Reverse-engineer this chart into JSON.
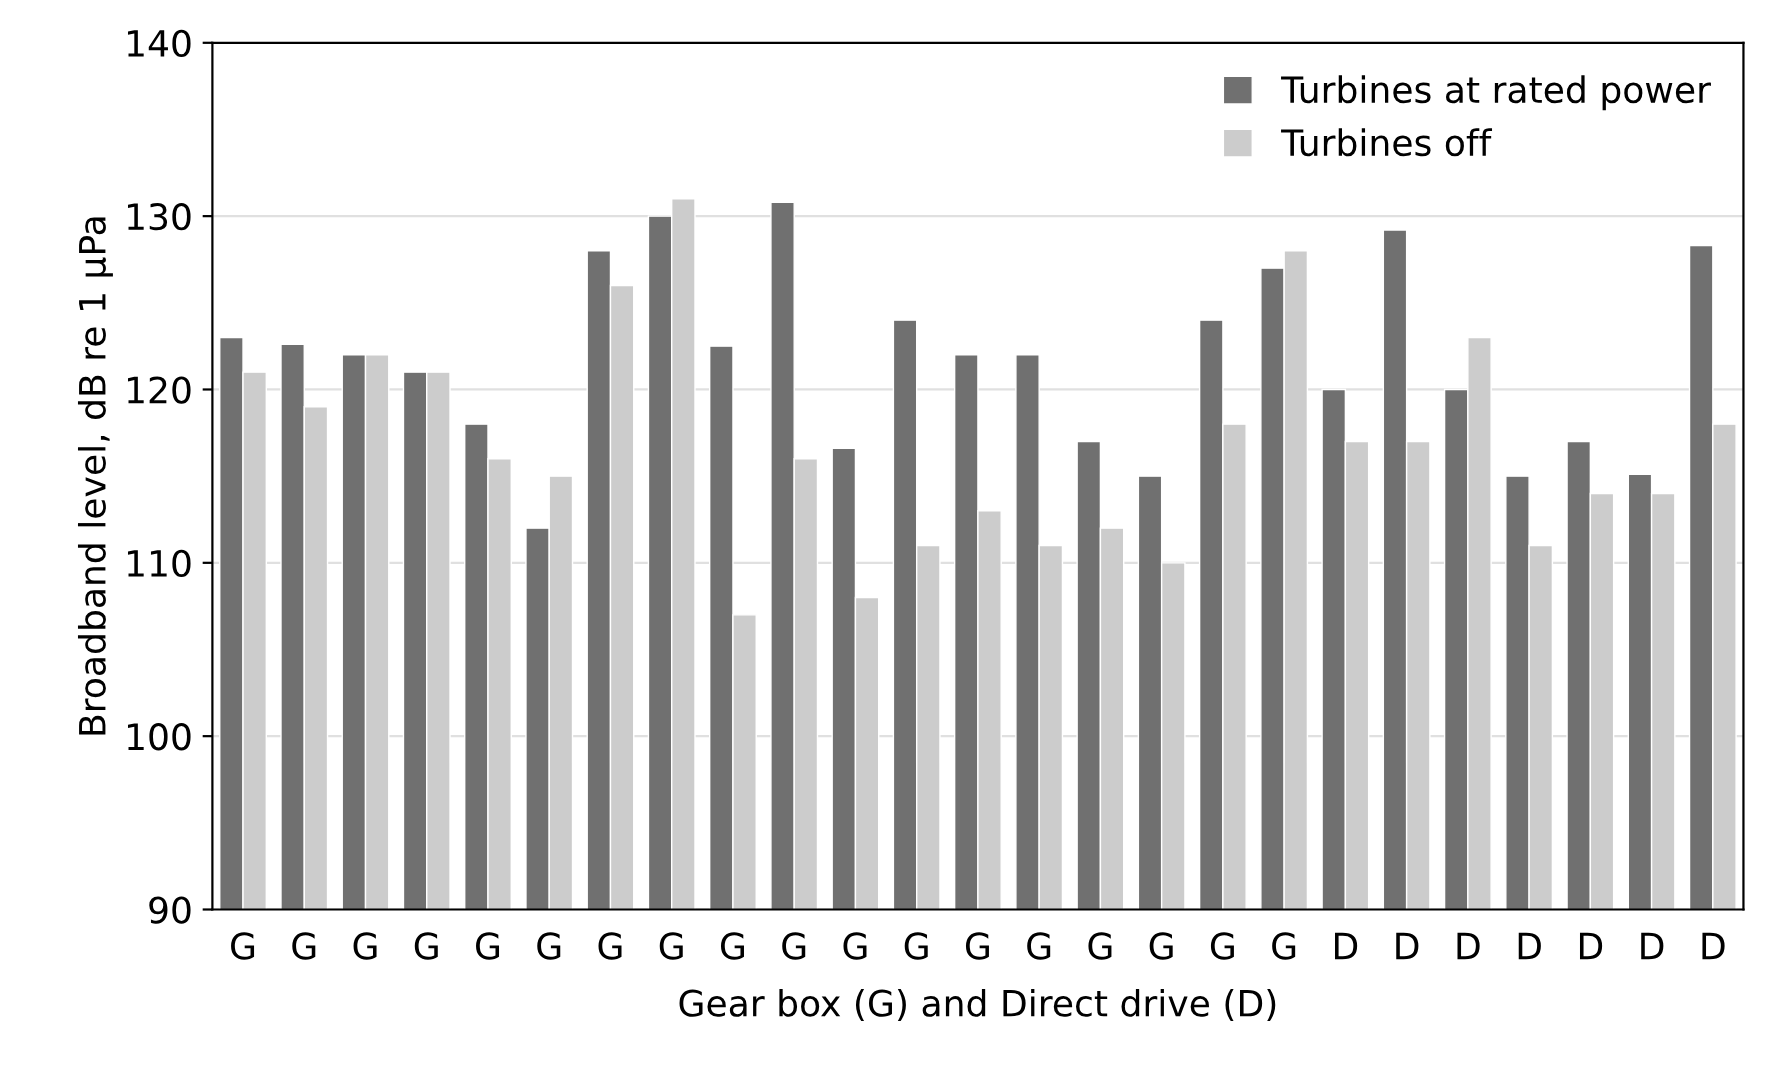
{
  "chart_data": {
    "type": "bar",
    "xlabel": "Gear box (G) and Direct drive (D)",
    "ylabel": "Broadband level, dB re 1 μPa",
    "categories": [
      "G",
      "G",
      "G",
      "G",
      "G",
      "G",
      "G",
      "G",
      "G",
      "G",
      "G",
      "G",
      "G",
      "G",
      "G",
      "G",
      "G",
      "G",
      "D",
      "D",
      "D",
      "D",
      "D",
      "D",
      "D"
    ],
    "series": [
      {
        "name": "Turbines at rated power",
        "color": "#707070",
        "values": [
          123,
          122.6,
          122,
          121,
          118,
          112,
          128,
          130,
          122.5,
          130.8,
          116.6,
          124,
          122,
          122,
          117,
          115,
          124,
          127,
          120,
          129.2,
          120,
          115,
          117,
          115.1,
          128.3
        ]
      },
      {
        "name": "Turbines off",
        "color": "#cccccc",
        "values": [
          121,
          119,
          122,
          121,
          116,
          115,
          126,
          131,
          107,
          116,
          108,
          111,
          113,
          111,
          112,
          110,
          118,
          128,
          117,
          117,
          123,
          111,
          114,
          114,
          118
        ]
      }
    ],
    "ylim": [
      90,
      140
    ],
    "yticks": [
      90,
      100,
      110,
      120,
      130,
      140
    ],
    "grid": "y",
    "legend": "top right"
  }
}
